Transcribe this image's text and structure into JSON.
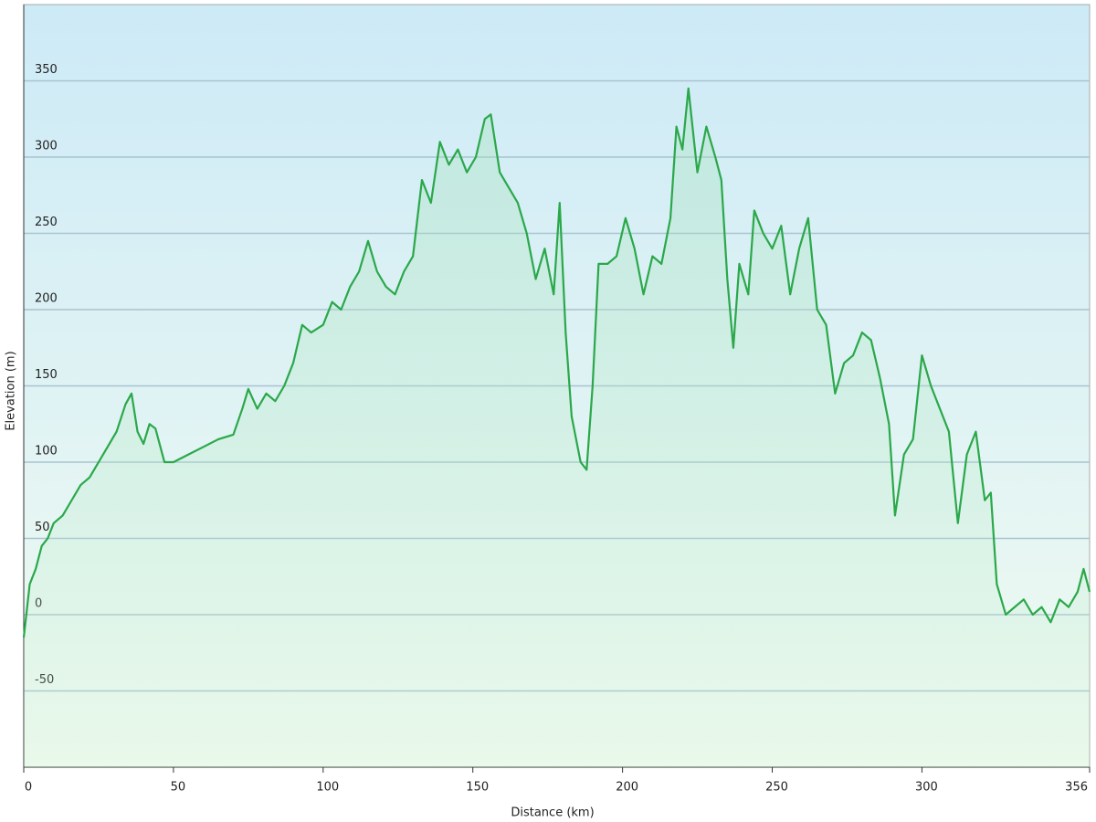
{
  "chart_data": {
    "type": "area",
    "x_label": "Distance  (km)",
    "y_label": "Elevation (m)",
    "x": [
      0,
      2,
      4,
      6,
      8,
      10,
      13,
      16,
      19,
      22,
      25,
      28,
      31,
      34,
      36,
      38,
      40,
      42,
      44,
      47,
      50,
      55,
      60,
      65,
      70,
      73,
      75,
      78,
      81,
      84,
      87,
      90,
      93,
      96,
      100,
      103,
      106,
      109,
      112,
      115,
      118,
      121,
      124,
      127,
      130,
      133,
      136,
      139,
      142,
      145,
      148,
      151,
      154,
      156,
      159,
      162,
      165,
      168,
      171,
      174,
      177,
      179,
      181,
      183,
      186,
      188,
      190,
      192,
      195,
      198,
      201,
      204,
      207,
      210,
      213,
      216,
      218,
      220,
      222,
      225,
      228,
      231,
      233,
      235,
      237,
      239,
      242,
      244,
      247,
      250,
      253,
      256,
      259,
      262,
      265,
      268,
      271,
      274,
      277,
      280,
      283,
      286,
      289,
      291,
      294,
      297,
      300,
      303,
      306,
      309,
      312,
      315,
      318,
      321,
      323,
      325,
      328,
      331,
      334,
      337,
      340,
      343,
      346,
      349,
      352,
      354,
      356
    ],
    "values": [
      -15,
      20,
      30,
      45,
      50,
      60,
      65,
      75,
      85,
      90,
      100,
      110,
      120,
      138,
      145,
      120,
      112,
      125,
      122,
      100,
      100,
      105,
      110,
      115,
      118,
      135,
      148,
      135,
      145,
      140,
      150,
      165,
      190,
      185,
      190,
      205,
      200,
      215,
      225,
      245,
      225,
      215,
      210,
      225,
      235,
      285,
      270,
      310,
      295,
      305,
      290,
      300,
      325,
      328,
      290,
      280,
      270,
      250,
      220,
      240,
      210,
      270,
      185,
      130,
      100,
      95,
      150,
      230,
      230,
      235,
      260,
      240,
      210,
      235,
      230,
      260,
      320,
      305,
      345,
      290,
      320,
      300,
      285,
      220,
      175,
      230,
      210,
      265,
      250,
      240,
      255,
      210,
      240,
      260,
      200,
      190,
      145,
      165,
      170,
      185,
      180,
      155,
      125,
      65,
      105,
      115,
      170,
      150,
      135,
      120,
      60,
      105,
      120,
      75,
      80,
      20,
      0,
      5,
      10,
      0,
      5,
      -5,
      10,
      5,
      15,
      30,
      15
    ],
    "color": "#2aa84a",
    "xlim": [
      0,
      356
    ],
    "xticks": [
      0,
      50,
      100,
      150,
      200,
      250,
      300,
      356
    ],
    "ylim": [
      -100,
      400
    ],
    "yticks": [
      -50,
      0,
      50,
      100,
      150,
      200,
      250,
      300,
      350
    ],
    "grid": true
  }
}
